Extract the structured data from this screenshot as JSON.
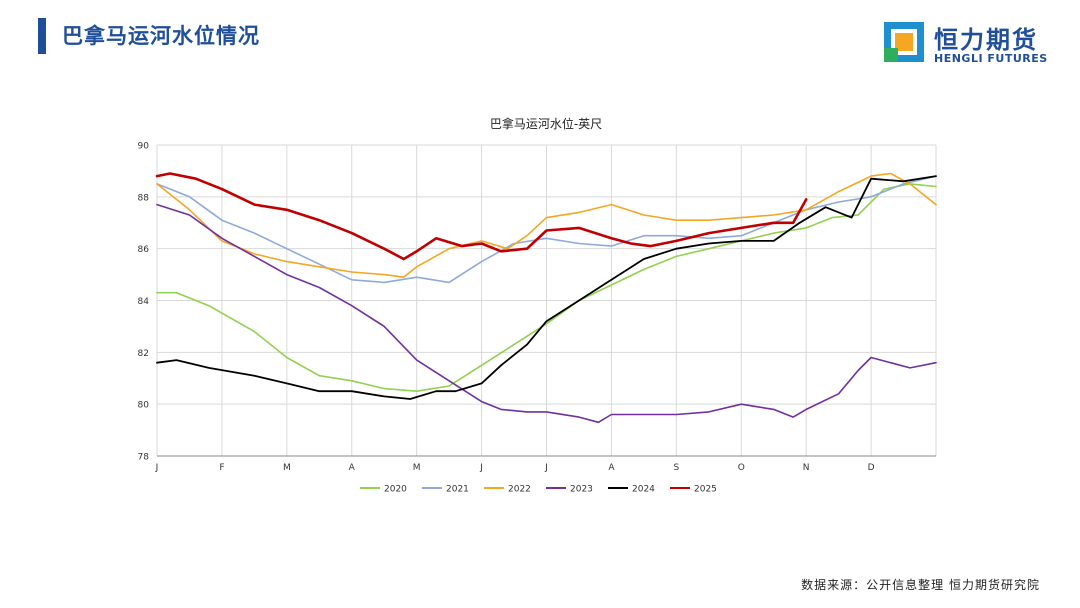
{
  "header": {
    "title": "巴拿马运河水位情况"
  },
  "logo": {
    "cn": "恒力期货",
    "en": "HENGLI FUTURES"
  },
  "footer": {
    "source": "数据来源：公开信息整理  恒力期货研究院"
  },
  "colors": {
    "accent": "#1f4e9a"
  },
  "chart_data": {
    "type": "line",
    "title": "巴拿马运河水位-英尺",
    "xlabel": "",
    "ylabel": "",
    "ylim": [
      78,
      90
    ],
    "yticks": [
      78,
      80,
      82,
      84,
      86,
      88,
      90
    ],
    "xlim": [
      0,
      12
    ],
    "xticks": [
      {
        "x": 0,
        "label": "J"
      },
      {
        "x": 1,
        "label": "F"
      },
      {
        "x": 2,
        "label": "M"
      },
      {
        "x": 3,
        "label": "A"
      },
      {
        "x": 4,
        "label": "M"
      },
      {
        "x": 5,
        "label": "J"
      },
      {
        "x": 6,
        "label": "J"
      },
      {
        "x": 7,
        "label": "A"
      },
      {
        "x": 8,
        "label": "S"
      },
      {
        "x": 9,
        "label": "O"
      },
      {
        "x": 10,
        "label": "N"
      },
      {
        "x": 11,
        "label": "D"
      }
    ],
    "grid": true,
    "legend": "bottom",
    "series": [
      {
        "name": "2020",
        "color": "#92d050",
        "width": 1.6,
        "x": [
          0,
          0.3,
          0.8,
          1.5,
          2,
          2.5,
          3,
          3.5,
          4,
          4.5,
          5,
          5.5,
          6,
          6.5,
          7,
          7.5,
          8,
          8.5,
          9,
          9.5,
          10,
          10.4,
          10.8,
          11.2,
          11.6,
          12
        ],
        "y": [
          84.3,
          84.3,
          83.8,
          82.8,
          81.8,
          81.1,
          80.9,
          80.6,
          80.5,
          80.7,
          81.5,
          82.3,
          83.1,
          84.0,
          84.6,
          85.2,
          85.7,
          86.0,
          86.3,
          86.6,
          86.8,
          87.2,
          87.3,
          88.3,
          88.5,
          88.4
        ]
      },
      {
        "name": "2021",
        "color": "#8eaadb",
        "width": 1.6,
        "x": [
          0,
          0.5,
          1,
          1.5,
          2,
          2.5,
          3,
          3.5,
          4,
          4.5,
          5,
          5.5,
          6,
          6.5,
          7,
          7.5,
          8,
          8.5,
          9,
          9.5,
          10,
          10.5,
          11,
          11.5,
          12
        ],
        "y": [
          88.5,
          88.0,
          87.1,
          86.6,
          86.0,
          85.4,
          84.8,
          84.7,
          84.9,
          84.7,
          85.5,
          86.2,
          86.4,
          86.2,
          86.1,
          86.5,
          86.5,
          86.4,
          86.5,
          87.0,
          87.5,
          87.8,
          88.0,
          88.5,
          88.8
        ]
      },
      {
        "name": "2022",
        "color": "#f5a623",
        "width": 1.6,
        "x": [
          0,
          0.5,
          1,
          1.5,
          2,
          2.5,
          3,
          3.5,
          3.8,
          4,
          4.5,
          5,
          5.4,
          5.7,
          6,
          6.5,
          7,
          7.5,
          8,
          8.5,
          9,
          9.5,
          10,
          10.5,
          11,
          11.3,
          11.6,
          12
        ],
        "y": [
          88.5,
          87.5,
          86.3,
          85.8,
          85.5,
          85.3,
          85.1,
          85.0,
          84.9,
          85.3,
          86.0,
          86.3,
          86.0,
          86.5,
          87.2,
          87.4,
          87.7,
          87.3,
          87.1,
          87.1,
          87.2,
          87.3,
          87.5,
          88.2,
          88.8,
          88.9,
          88.5,
          87.7
        ]
      },
      {
        "name": "2023",
        "color": "#7030a0",
        "width": 1.6,
        "x": [
          0,
          0.5,
          1,
          1.5,
          2,
          2.5,
          3,
          3.5,
          4,
          4.5,
          5,
          5.3,
          5.7,
          6,
          6.5,
          6.8,
          7,
          7.3,
          7.6,
          8,
          8.5,
          9,
          9.5,
          9.8,
          10,
          10.5,
          10.8,
          11,
          11.3,
          11.6,
          12
        ],
        "y": [
          87.7,
          87.3,
          86.4,
          85.7,
          85.0,
          84.5,
          83.8,
          83.0,
          81.7,
          80.9,
          80.1,
          79.8,
          79.7,
          79.7,
          79.5,
          79.3,
          79.6,
          79.6,
          79.6,
          79.6,
          79.7,
          80.0,
          79.8,
          79.5,
          79.8,
          80.4,
          81.3,
          81.8,
          81.6,
          81.4,
          81.6
        ]
      },
      {
        "name": "2024",
        "color": "#000000",
        "width": 1.8,
        "x": [
          0,
          0.3,
          0.8,
          1.5,
          2,
          2.5,
          3,
          3.5,
          3.9,
          4.3,
          4.6,
          5,
          5.3,
          5.7,
          6,
          6.5,
          7,
          7.5,
          8,
          8.5,
          9,
          9.5,
          9.9,
          10.3,
          10.7,
          11,
          11.5,
          12
        ],
        "y": [
          81.6,
          81.7,
          81.4,
          81.1,
          80.8,
          80.5,
          80.5,
          80.3,
          80.2,
          80.5,
          80.5,
          80.8,
          81.5,
          82.3,
          83.2,
          84.0,
          84.8,
          85.6,
          86.0,
          86.2,
          86.3,
          86.3,
          87.0,
          87.6,
          87.2,
          88.7,
          88.6,
          88.8
        ]
      },
      {
        "name": "2025",
        "color": "#c00000",
        "width": 2.6,
        "x": [
          0,
          0.2,
          0.6,
          1,
          1.5,
          2,
          2.5,
          3,
          3.5,
          3.8,
          4,
          4.3,
          4.7,
          5,
          5.3,
          5.7,
          6,
          6.5,
          7,
          7.3,
          7.6,
          8,
          8.5,
          9,
          9.5,
          9.8,
          10
        ],
        "y": [
          88.8,
          88.9,
          88.7,
          88.3,
          87.7,
          87.5,
          87.1,
          86.6,
          86.0,
          85.6,
          85.9,
          86.4,
          86.1,
          86.2,
          85.9,
          86.0,
          86.7,
          86.8,
          86.4,
          86.2,
          86.1,
          86.3,
          86.6,
          86.8,
          87.0,
          87.0,
          87.9
        ]
      }
    ]
  }
}
